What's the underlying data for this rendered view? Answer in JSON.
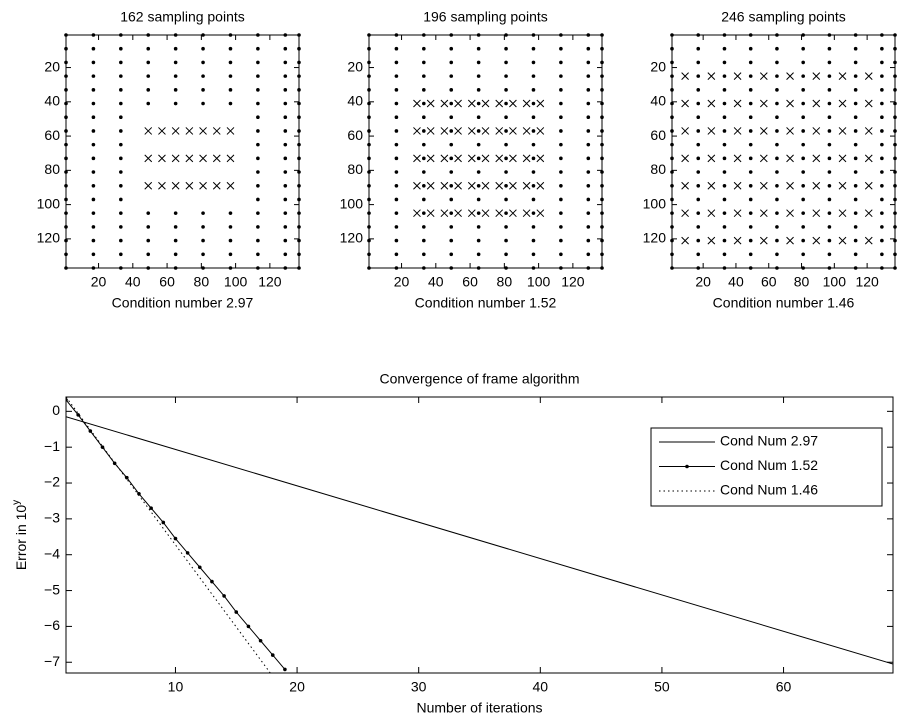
{
  "chart_data": [
    {
      "type": "scatter",
      "title": "162 sampling points",
      "xlabel": "Condition number 2.97",
      "xlim": [
        1,
        137
      ],
      "ylim": [
        1,
        137
      ],
      "y_reversed": true,
      "xticks": [
        20,
        40,
        60,
        80,
        100,
        120
      ],
      "yticks": [
        20,
        40,
        60,
        80,
        100,
        120
      ],
      "color": "#000000",
      "dot_columns": [
        {
          "x": 1,
          "y": [
            1,
            9,
            17,
            25,
            33,
            41,
            49,
            57,
            65,
            73,
            81,
            89,
            97,
            105,
            113,
            121,
            129,
            137
          ]
        },
        {
          "x": 17,
          "y": [
            1,
            9,
            17,
            25,
            33,
            41,
            49,
            57,
            65,
            73,
            81,
            89,
            97,
            105,
            113,
            121,
            129,
            137
          ]
        },
        {
          "x": 33,
          "y": [
            1,
            9,
            17,
            25,
            33,
            41,
            49,
            57,
            65,
            73,
            81,
            89,
            97,
            105,
            113,
            121,
            129,
            137
          ]
        },
        {
          "x": 49,
          "y": [
            1,
            9,
            17,
            25,
            33,
            41,
            105,
            113,
            121,
            129,
            137
          ]
        },
        {
          "x": 65,
          "y": [
            1,
            9,
            17,
            25,
            33,
            41,
            105,
            113,
            121,
            129,
            137
          ]
        },
        {
          "x": 81,
          "y": [
            1,
            9,
            17,
            25,
            33,
            41,
            105,
            113,
            121,
            129,
            137
          ]
        },
        {
          "x": 97,
          "y": [
            1,
            9,
            17,
            25,
            33,
            41,
            105,
            113,
            121,
            129,
            137
          ]
        },
        {
          "x": 113,
          "y": [
            1,
            9,
            17,
            25,
            33,
            41,
            49,
            57,
            65,
            73,
            81,
            89,
            97,
            105,
            113,
            121,
            129,
            137
          ]
        },
        {
          "x": 129,
          "y": [
            1,
            9,
            17,
            25,
            33,
            41,
            49,
            57,
            65,
            73,
            81,
            89,
            97,
            105,
            113,
            121,
            129,
            137
          ]
        },
        {
          "x": 137,
          "y": [
            1,
            9,
            17,
            25,
            33,
            41,
            49,
            57,
            65,
            73,
            81,
            89,
            97,
            105,
            113,
            121,
            129,
            137
          ]
        }
      ],
      "cross_rows": [
        {
          "y": 57,
          "x": [
            49,
            57,
            65,
            73,
            81,
            89,
            97
          ]
        },
        {
          "y": 73,
          "x": [
            49,
            57,
            65,
            73,
            81,
            89,
            97
          ]
        },
        {
          "y": 89,
          "x": [
            49,
            57,
            65,
            73,
            81,
            89,
            97
          ]
        }
      ]
    },
    {
      "type": "scatter",
      "title": "196 sampling points",
      "xlabel": "Condition number 1.52",
      "xlim": [
        1,
        137
      ],
      "ylim": [
        1,
        137
      ],
      "y_reversed": true,
      "xticks": [
        20,
        40,
        60,
        80,
        100,
        120
      ],
      "yticks": [
        20,
        40,
        60,
        80,
        100,
        120
      ],
      "color": "#000000",
      "dot_columns": [
        {
          "x": 1,
          "y": [
            1,
            9,
            17,
            25,
            33,
            41,
            49,
            57,
            65,
            73,
            81,
            89,
            97,
            105,
            113,
            121,
            129,
            137
          ]
        },
        {
          "x": 17,
          "y": [
            1,
            9,
            17,
            25,
            33,
            41,
            49,
            57,
            65,
            73,
            81,
            89,
            97,
            105,
            113,
            121,
            129,
            137
          ]
        },
        {
          "x": 33,
          "y": [
            1,
            9,
            17,
            25,
            33,
            41,
            49,
            57,
            65,
            73,
            81,
            89,
            97,
            105,
            113,
            121,
            129,
            137
          ]
        },
        {
          "x": 49,
          "y": [
            1,
            9,
            17,
            25,
            33,
            41,
            49,
            57,
            65,
            73,
            81,
            89,
            97,
            105,
            113,
            121,
            129,
            137
          ]
        },
        {
          "x": 65,
          "y": [
            1,
            9,
            17,
            25,
            33,
            41,
            49,
            57,
            65,
            73,
            81,
            89,
            97,
            105,
            113,
            121,
            129,
            137
          ]
        },
        {
          "x": 81,
          "y": [
            1,
            9,
            17,
            25,
            33,
            41,
            49,
            57,
            65,
            73,
            81,
            89,
            97,
            105,
            113,
            121,
            129,
            137
          ]
        },
        {
          "x": 97,
          "y": [
            1,
            9,
            17,
            25,
            33,
            41,
            49,
            57,
            65,
            73,
            81,
            89,
            97,
            105,
            113,
            121,
            129,
            137
          ]
        },
        {
          "x": 113,
          "y": [
            1,
            9,
            17,
            25,
            33,
            41,
            49,
            57,
            65,
            73,
            81,
            89,
            97,
            105,
            113,
            121,
            129,
            137
          ]
        },
        {
          "x": 129,
          "y": [
            1,
            9,
            17,
            25,
            33,
            41,
            49,
            57,
            65,
            73,
            81,
            89,
            97,
            105,
            113,
            121,
            129,
            137
          ]
        },
        {
          "x": 137,
          "y": [
            1,
            9,
            17,
            25,
            33,
            41,
            49,
            57,
            65,
            73,
            81,
            89,
            97,
            105,
            113,
            121,
            129,
            137
          ]
        }
      ],
      "cross_rows": [
        {
          "y": 41,
          "x": [
            29,
            37,
            45,
            53,
            61,
            69,
            77,
            85,
            93,
            101
          ]
        },
        {
          "y": 57,
          "x": [
            29,
            37,
            45,
            53,
            61,
            69,
            77,
            85,
            93,
            101
          ]
        },
        {
          "y": 73,
          "x": [
            29,
            37,
            45,
            53,
            61,
            69,
            77,
            85,
            93,
            101
          ]
        },
        {
          "y": 89,
          "x": [
            29,
            37,
            45,
            53,
            61,
            69,
            77,
            85,
            93,
            101
          ]
        },
        {
          "y": 105,
          "x": [
            29,
            37,
            45,
            53,
            61,
            69,
            77,
            85,
            93,
            101
          ]
        }
      ]
    },
    {
      "type": "scatter",
      "title": "246 sampling points",
      "xlabel": "Condition number 1.46",
      "xlim": [
        1,
        137
      ],
      "ylim": [
        1,
        137
      ],
      "y_reversed": true,
      "xticks": [
        20,
        40,
        60,
        80,
        100,
        120
      ],
      "yticks": [
        20,
        40,
        60,
        80,
        100,
        120
      ],
      "color": "#000000",
      "dot_columns": [
        {
          "x": 1,
          "y": [
            1,
            9,
            17,
            25,
            33,
            41,
            49,
            57,
            65,
            73,
            81,
            89,
            97,
            105,
            113,
            121,
            129,
            137
          ]
        },
        {
          "x": 17,
          "y": [
            1,
            9,
            17,
            25,
            33,
            41,
            49,
            57,
            65,
            73,
            81,
            89,
            97,
            105,
            113,
            121,
            129,
            137
          ]
        },
        {
          "x": 33,
          "y": [
            1,
            9,
            17,
            25,
            33,
            41,
            49,
            57,
            65,
            73,
            81,
            89,
            97,
            105,
            113,
            121,
            129,
            137
          ]
        },
        {
          "x": 49,
          "y": [
            1,
            9,
            17,
            25,
            33,
            41,
            49,
            57,
            65,
            73,
            81,
            89,
            97,
            105,
            113,
            121,
            129,
            137
          ]
        },
        {
          "x": 65,
          "y": [
            1,
            9,
            17,
            25,
            33,
            41,
            49,
            57,
            65,
            73,
            81,
            89,
            97,
            105,
            113,
            121,
            129,
            137
          ]
        },
        {
          "x": 81,
          "y": [
            1,
            9,
            17,
            25,
            33,
            41,
            49,
            57,
            65,
            73,
            81,
            89,
            97,
            105,
            113,
            121,
            129,
            137
          ]
        },
        {
          "x": 97,
          "y": [
            1,
            9,
            17,
            25,
            33,
            41,
            49,
            57,
            65,
            73,
            81,
            89,
            97,
            105,
            113,
            121,
            129,
            137
          ]
        },
        {
          "x": 113,
          "y": [
            1,
            9,
            17,
            25,
            33,
            41,
            49,
            57,
            65,
            73,
            81,
            89,
            97,
            105,
            113,
            121,
            129,
            137
          ]
        },
        {
          "x": 129,
          "y": [
            1,
            9,
            17,
            25,
            33,
            41,
            49,
            57,
            65,
            73,
            81,
            89,
            97,
            105,
            113,
            121,
            129,
            137
          ]
        },
        {
          "x": 137,
          "y": [
            1,
            9,
            17,
            25,
            33,
            41,
            49,
            57,
            65,
            73,
            81,
            89,
            97,
            105,
            113,
            121,
            129,
            137
          ]
        }
      ],
      "cross_rows": [
        {
          "y": 25,
          "x": [
            9,
            25,
            41,
            57,
            73,
            89,
            105,
            121
          ]
        },
        {
          "y": 41,
          "x": [
            9,
            25,
            41,
            57,
            73,
            89,
            105,
            121
          ]
        },
        {
          "y": 57,
          "x": [
            9,
            25,
            41,
            57,
            73,
            89,
            105,
            121
          ]
        },
        {
          "y": 73,
          "x": [
            9,
            25,
            41,
            57,
            73,
            89,
            105,
            121
          ]
        },
        {
          "y": 89,
          "x": [
            9,
            25,
            41,
            57,
            73,
            89,
            105,
            121
          ]
        },
        {
          "y": 105,
          "x": [
            9,
            25,
            41,
            57,
            73,
            89,
            105,
            121
          ]
        },
        {
          "y": 121,
          "x": [
            9,
            25,
            41,
            57,
            73,
            89,
            105,
            121
          ]
        }
      ]
    },
    {
      "type": "line",
      "title": "Convergence of frame algorithm",
      "xlabel": "Number of iterations",
      "ylabel": "Error in 10",
      "ylabel_superscript": "y",
      "xlim": [
        1,
        69
      ],
      "ylim": [
        -7.3,
        0.4
      ],
      "xticks": [
        10,
        20,
        30,
        40,
        50,
        60
      ],
      "yticks": [
        0,
        {
          "value": -1,
          "label": "−1"
        },
        {
          "value": -2,
          "label": "−2"
        },
        {
          "value": -3,
          "label": "−3"
        },
        {
          "value": -4,
          "label": "−4"
        },
        {
          "value": -5,
          "label": "−5"
        },
        {
          "value": -6,
          "label": "−6"
        },
        {
          "value": -7,
          "label": "−7"
        }
      ],
      "legend": "upper right",
      "series": [
        {
          "name": "Cond Num 2.97",
          "color": "#000000",
          "linestyle": "solid",
          "marker": "none",
          "x": [
            1,
            69
          ],
          "values": [
            -0.15,
            -7.05
          ]
        },
        {
          "name": "Cond Num 1.52",
          "color": "#000000",
          "linestyle": "solid",
          "marker": "dot",
          "x": [
            1,
            2,
            3,
            4,
            5,
            6,
            7,
            8,
            9,
            10,
            11,
            12,
            13,
            14,
            15,
            16,
            17,
            18,
            19
          ],
          "values": [
            0.32,
            -0.1,
            -0.55,
            -1.0,
            -1.45,
            -1.85,
            -2.3,
            -2.7,
            -3.1,
            -3.55,
            -3.95,
            -4.35,
            -4.75,
            -5.15,
            -5.6,
            -6.0,
            -6.4,
            -6.8,
            -7.2
          ]
        },
        {
          "name": "Cond Num 1.46",
          "color": "#000000",
          "linestyle": "dotted",
          "marker": "none",
          "x": [
            1,
            17.8
          ],
          "values": [
            0.4,
            -7.3
          ]
        }
      ]
    }
  ]
}
